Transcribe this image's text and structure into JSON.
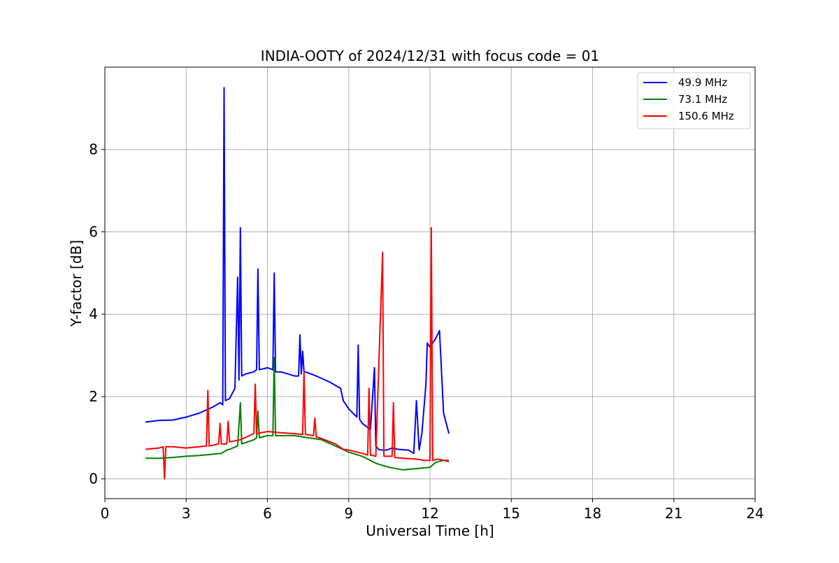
{
  "chart_data": {
    "type": "line",
    "title": "INDIA-OOTY of 2024/12/31 with focus code = 01",
    "xlabel": "Universal Time [h]",
    "ylabel": "Y-factor [dB]",
    "xlim": [
      0,
      24
    ],
    "ylim": [
      -0.48,
      10.0
    ],
    "xticks": [
      0,
      3,
      6,
      9,
      12,
      15,
      18,
      21,
      24
    ],
    "yticks": [
      0,
      2,
      4,
      6,
      8
    ],
    "grid": true,
    "legend_position": "top-right",
    "series": [
      {
        "name": "  49.9 MHz",
        "color": "#0000ff",
        "x": [
          1.5,
          2.0,
          2.5,
          3.0,
          3.5,
          4.0,
          4.25,
          4.35,
          4.4,
          4.45,
          4.6,
          4.8,
          4.9,
          4.95,
          5.0,
          5.05,
          5.2,
          5.5,
          5.6,
          5.65,
          5.7,
          6.0,
          6.2,
          6.25,
          6.3,
          6.5,
          7.0,
          7.15,
          7.2,
          7.25,
          7.3,
          7.35,
          7.4,
          7.8,
          8.3,
          8.7,
          8.8,
          9.0,
          9.3,
          9.35,
          9.4,
          9.5,
          9.8,
          9.95,
          10.0,
          10.1,
          10.2,
          10.4,
          10.6,
          10.8,
          11.2,
          11.4,
          11.5,
          11.6,
          11.7,
          11.85,
          11.9,
          12.0,
          12.2,
          12.35,
          12.5,
          12.7
        ],
        "y": [
          1.38,
          1.42,
          1.43,
          1.5,
          1.6,
          1.75,
          1.85,
          1.8,
          9.5,
          1.9,
          1.95,
          2.2,
          4.9,
          2.4,
          6.1,
          2.5,
          2.55,
          2.6,
          2.65,
          5.1,
          2.65,
          2.7,
          2.65,
          5.0,
          2.6,
          2.6,
          2.5,
          2.5,
          3.5,
          2.55,
          3.1,
          2.6,
          2.6,
          2.5,
          2.35,
          2.2,
          1.9,
          1.7,
          1.5,
          3.25,
          1.45,
          1.35,
          1.2,
          2.7,
          0.8,
          0.72,
          0.7,
          0.7,
          0.75,
          0.72,
          0.7,
          0.62,
          1.9,
          0.7,
          1.1,
          2.3,
          3.3,
          3.2,
          3.4,
          3.6,
          1.6,
          1.1
        ]
      },
      {
        "name": "  73.1 MHz",
        "color": "#008000",
        "x": [
          1.5,
          2.0,
          2.5,
          3.0,
          3.5,
          4.0,
          4.3,
          4.5,
          4.6,
          4.9,
          5.0,
          5.05,
          5.5,
          5.6,
          5.65,
          5.7,
          6.0,
          6.2,
          6.25,
          6.3,
          6.5,
          7.0,
          7.5,
          8.0,
          8.5,
          9.0,
          9.5,
          10.0,
          10.5,
          11.0,
          11.5,
          12.0,
          12.2,
          12.5,
          12.7
        ],
        "y": [
          0.5,
          0.5,
          0.52,
          0.55,
          0.57,
          0.6,
          0.62,
          0.7,
          0.72,
          0.8,
          1.85,
          0.85,
          0.95,
          1.0,
          1.65,
          1.0,
          1.05,
          1.05,
          2.95,
          1.05,
          1.05,
          1.05,
          1.0,
          0.95,
          0.8,
          0.65,
          0.55,
          0.38,
          0.28,
          0.22,
          0.25,
          0.28,
          0.4,
          0.45,
          0.45
        ]
      },
      {
        "name": "150.6 MHz",
        "color": "#ff0000",
        "x": [
          1.5,
          2.0,
          2.15,
          2.2,
          2.25,
          2.5,
          3.0,
          3.5,
          3.75,
          3.8,
          3.85,
          4.0,
          4.2,
          4.25,
          4.3,
          4.5,
          4.55,
          4.6,
          5.0,
          5.5,
          5.55,
          5.6,
          6.0,
          6.5,
          7.0,
          7.3,
          7.35,
          7.4,
          7.7,
          7.75,
          7.8,
          8.0,
          8.5,
          8.8,
          9.0,
          9.5,
          9.7,
          9.75,
          9.8,
          10.0,
          10.25,
          10.3,
          10.35,
          10.6,
          10.65,
          10.7,
          11.0,
          11.5,
          11.8,
          12.0,
          12.05,
          12.1,
          12.3,
          12.5,
          12.7
        ],
        "y": [
          0.72,
          0.75,
          0.78,
          0.0,
          0.78,
          0.78,
          0.75,
          0.78,
          0.8,
          2.15,
          0.8,
          0.82,
          0.85,
          1.35,
          0.85,
          0.85,
          1.4,
          0.9,
          0.95,
          1.1,
          2.3,
          1.1,
          1.15,
          1.12,
          1.1,
          1.08,
          2.6,
          1.08,
          1.05,
          1.48,
          1.02,
          0.98,
          0.85,
          0.72,
          0.7,
          0.62,
          0.58,
          2.2,
          0.58,
          0.55,
          5.5,
          0.55,
          0.55,
          0.55,
          1.85,
          0.52,
          0.5,
          0.48,
          0.45,
          0.45,
          6.1,
          0.45,
          0.48,
          0.45,
          0.42
        ]
      }
    ]
  }
}
